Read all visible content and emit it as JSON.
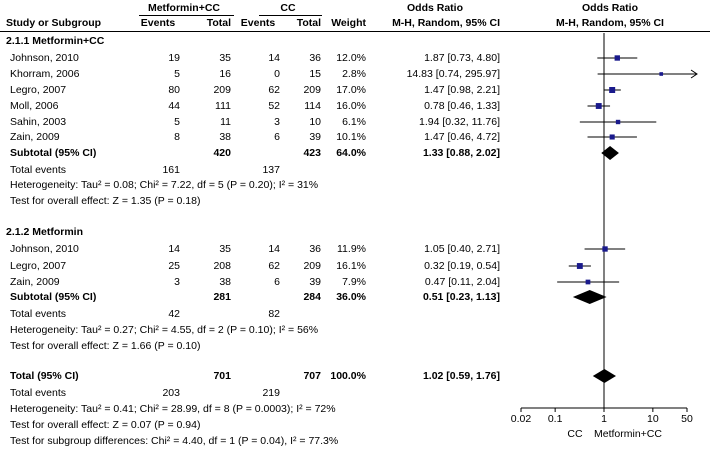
{
  "header": {
    "group1": "Metformin+CC",
    "group2": "CC",
    "or_title": "Odds Ratio",
    "or_method": "M-H, Random, 95% CI",
    "plot_title": "Odds Ratio",
    "plot_method": "M-H, Random, 95% CI",
    "col_study": "Study or Subgroup",
    "col_events1": "Events",
    "col_total1": "Total",
    "col_events2": "Events",
    "col_total2": "Total",
    "col_weight": "Weight"
  },
  "subgroups": [
    {
      "title": "2.1.1 Metformin+CC",
      "studies": [
        {
          "name": "Johnson, 2010",
          "e1": "19",
          "t1": "35",
          "e2": "14",
          "t2": "36",
          "weight": "12.0%",
          "ci_text": "1.87 [0.73, 4.80]"
        },
        {
          "name": "Khorram, 2006",
          "e1": "5",
          "t1": "16",
          "e2": "0",
          "t2": "15",
          "weight": "2.8%",
          "ci_text": "14.83 [0.74, 295.97]"
        },
        {
          "name": "Legro, 2007",
          "e1": "80",
          "t1": "209",
          "e2": "62",
          "t2": "209",
          "weight": "17.0%",
          "ci_text": "1.47 [0.98, 2.21]"
        },
        {
          "name": "Moll, 2006",
          "e1": "44",
          "t1": "111",
          "e2": "52",
          "t2": "114",
          "weight": "16.0%",
          "ci_text": "0.78 [0.46, 1.33]"
        },
        {
          "name": "Sahin, 2003",
          "e1": "5",
          "t1": "11",
          "e2": "3",
          "t2": "10",
          "weight": "6.1%",
          "ci_text": "1.94 [0.32, 11.76]"
        },
        {
          "name": "Zain, 2009",
          "e1": "8",
          "t1": "38",
          "e2": "6",
          "t2": "39",
          "weight": "10.1%",
          "ci_text": "1.47 [0.46, 4.72]"
        }
      ],
      "subtotal": {
        "label": "Subtotal (95% CI)",
        "t1": "420",
        "t2": "423",
        "weight": "64.0%",
        "ci_text": "1.33 [0.88, 2.02]"
      },
      "events": {
        "label": "Total events",
        "e1": "161",
        "e2": "137"
      },
      "heterogeneity": "Heterogeneity: Tau² = 0.08; Chi² = 7.22, df = 5 (P = 0.20); I² = 31%",
      "overall": "Test for overall effect: Z = 1.35 (P = 0.18)"
    },
    {
      "title": "2.1.2 Metformin",
      "studies": [
        {
          "name": "Johnson, 2010",
          "e1": "14",
          "t1": "35",
          "e2": "14",
          "t2": "36",
          "weight": "11.9%",
          "ci_text": "1.05 [0.40, 2.71]"
        },
        {
          "name": "Legro, 2007",
          "e1": "25",
          "t1": "208",
          "e2": "62",
          "t2": "209",
          "weight": "16.1%",
          "ci_text": "0.32 [0.19, 0.54]"
        },
        {
          "name": "Zain, 2009",
          "e1": "3",
          "t1": "38",
          "e2": "6",
          "t2": "39",
          "weight": "7.9%",
          "ci_text": "0.47 [0.11, 2.04]"
        }
      ],
      "subtotal": {
        "label": "Subtotal (95% CI)",
        "t1": "281",
        "t2": "284",
        "weight": "36.0%",
        "ci_text": "0.51 [0.23, 1.13]"
      },
      "events": {
        "label": "Total events",
        "e1": "42",
        "e2": "82"
      },
      "heterogeneity": "Heterogeneity: Tau² = 0.27; Chi² = 4.55, df = 2 (P = 0.10); I² = 56%",
      "overall": "Test for overall effect: Z = 1.66 (P = 0.10)"
    }
  ],
  "total": {
    "label": "Total (95% CI)",
    "t1": "701",
    "t2": "707",
    "weight": "100.0%",
    "ci_text": "1.02 [0.59, 1.76]",
    "events_label": "Total events",
    "e1": "203",
    "e2": "219",
    "heterogeneity": "Heterogeneity: Tau² = 0.41; Chi² = 28.99, df = 8 (P = 0.0003); I² = 72%",
    "overall": "Test for overall effect: Z = 0.07 (P = 0.94)",
    "subgroup_diff": "Test for subgroup differences: Chi² = 4.40, df = 1 (P = 0.04), I² = 77.3%"
  },
  "chart_data": {
    "type": "forest",
    "scale": "log",
    "xlim": [
      0.02,
      50
    ],
    "ticks": [
      0.02,
      0.1,
      1,
      10,
      50
    ],
    "tick_labels": [
      "0.02",
      "0.1",
      "1",
      "10",
      "50"
    ],
    "reference_line": 1,
    "favours_left": "CC",
    "favours_right": "Metformin+CC",
    "colors": {
      "study_marker": "#1a1a8c",
      "summary_diamond": "#000000"
    },
    "studies": [
      {
        "name": "Johnson, 2010",
        "or": 1.87,
        "lo": 0.73,
        "hi": 4.8,
        "weight": 12.0
      },
      {
        "name": "Khorram, 2006",
        "or": 14.83,
        "lo": 0.74,
        "hi": 295.97,
        "weight": 2.8
      },
      {
        "name": "Legro, 2007",
        "or": 1.47,
        "lo": 0.98,
        "hi": 2.21,
        "weight": 17.0
      },
      {
        "name": "Moll, 2006",
        "or": 0.78,
        "lo": 0.46,
        "hi": 1.33,
        "weight": 16.0
      },
      {
        "name": "Sahin, 2003",
        "or": 1.94,
        "lo": 0.32,
        "hi": 11.76,
        "weight": 6.1
      },
      {
        "name": "Zain, 2009",
        "or": 1.47,
        "lo": 0.46,
        "hi": 4.72,
        "weight": 10.1
      },
      {
        "name": "Johnson, 2010",
        "or": 1.05,
        "lo": 0.4,
        "hi": 2.71,
        "weight": 11.9
      },
      {
        "name": "Legro, 2007",
        "or": 0.32,
        "lo": 0.19,
        "hi": 0.54,
        "weight": 16.1
      },
      {
        "name": "Zain, 2009",
        "or": 0.47,
        "lo": 0.11,
        "hi": 2.04,
        "weight": 7.9
      }
    ],
    "summaries": [
      {
        "name": "Subtotal 2.1.1",
        "or": 1.33,
        "lo": 0.88,
        "hi": 2.02
      },
      {
        "name": "Subtotal 2.1.2",
        "or": 0.51,
        "lo": 0.23,
        "hi": 1.13
      },
      {
        "name": "Total",
        "or": 1.02,
        "lo": 0.59,
        "hi": 1.76
      }
    ]
  }
}
